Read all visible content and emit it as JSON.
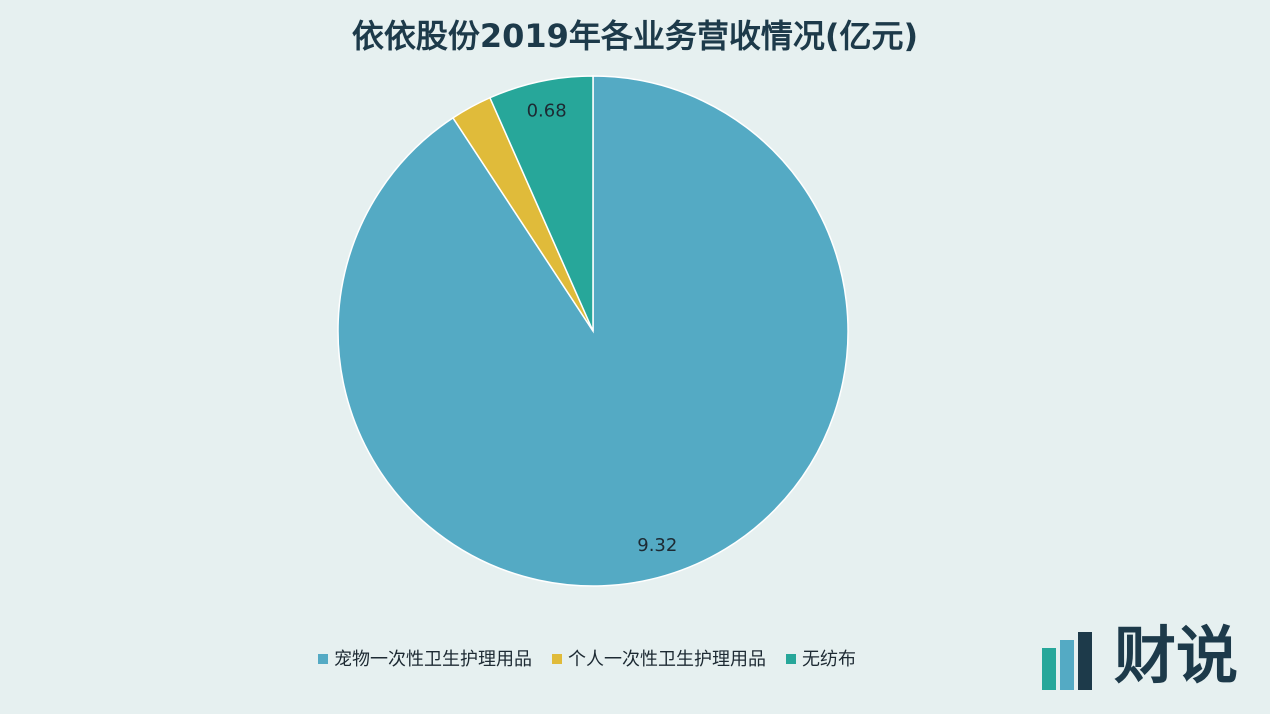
{
  "chart_data": {
    "type": "pie",
    "title": "依依股份2019年各业务营收情况(亿元)",
    "categories": [
      "宠物一次性卫生护理用品",
      "个人一次性卫生护理用品",
      "无纺布"
    ],
    "values": [
      9.32,
      0.27,
      0.68
    ],
    "value_labels": [
      "9.32",
      null,
      "0.68"
    ],
    "colors": [
      "#54aac4",
      "#e0bb3a",
      "#27a79a"
    ],
    "legend": "bottom"
  },
  "brand": "财说"
}
